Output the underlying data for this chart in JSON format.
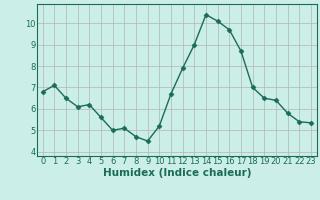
{
  "x": [
    0,
    1,
    2,
    3,
    4,
    5,
    6,
    7,
    8,
    9,
    10,
    11,
    12,
    13,
    14,
    15,
    16,
    17,
    18,
    19,
    20,
    21,
    22,
    23
  ],
  "y": [
    6.8,
    7.1,
    6.5,
    6.1,
    6.2,
    5.6,
    5.0,
    5.1,
    4.7,
    4.5,
    5.2,
    6.7,
    7.9,
    9.0,
    10.4,
    10.1,
    9.7,
    8.7,
    7.0,
    6.5,
    6.4,
    5.8,
    5.4,
    5.35
  ],
  "line_color": "#1a6b5a",
  "marker": "D",
  "marker_size": 2.5,
  "bg_color": "#cceee8",
  "grid_color": "#b0b8b0",
  "xlabel": "Humidex (Indice chaleur)",
  "xlim": [
    -0.5,
    23.5
  ],
  "ylim": [
    3.8,
    10.9
  ],
  "yticks": [
    4,
    5,
    6,
    7,
    8,
    9,
    10
  ],
  "xticks": [
    0,
    1,
    2,
    3,
    4,
    5,
    6,
    7,
    8,
    9,
    10,
    11,
    12,
    13,
    14,
    15,
    16,
    17,
    18,
    19,
    20,
    21,
    22,
    23
  ],
  "tick_fontsize": 6,
  "xlabel_fontsize": 7.5,
  "line_width": 1.0
}
